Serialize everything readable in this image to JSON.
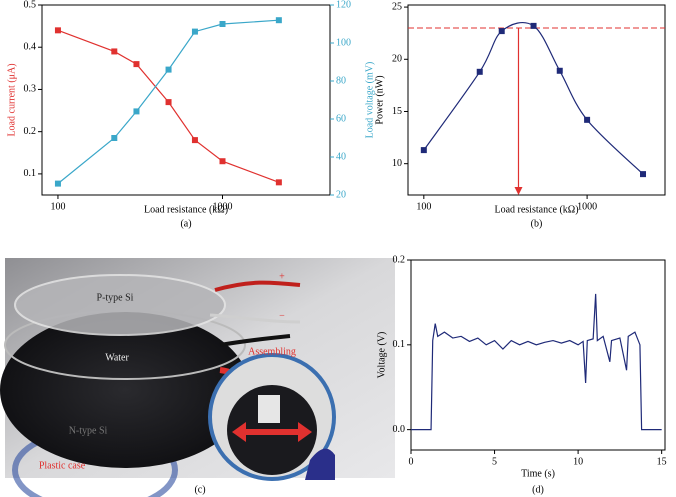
{
  "chart_data": [
    {
      "type": "line",
      "panel_label": "(a)",
      "xscale": "log",
      "markers": true,
      "x": [
        100,
        220,
        300,
        470,
        680,
        1000,
        2200
      ],
      "xlim": [
        80,
        4500
      ],
      "xticks": [
        100,
        1000
      ],
      "ylim": [
        0.05,
        0.5
      ],
      "yticks": [
        0.1,
        0.2,
        0.3,
        0.4,
        0.5
      ],
      "y2lim": [
        20,
        120
      ],
      "y2ticks": [
        20,
        40,
        60,
        80,
        100,
        120
      ],
      "xlabel": "Load resistance (kΩ)",
      "ylabel": "Load current (μA)",
      "y2label": "Load voltage (mV)",
      "series": [
        {
          "color": "#e0312f",
          "values": [
            0.44,
            0.39,
            0.36,
            0.27,
            0.18,
            0.13,
            0.08
          ]
        },
        {
          "color": "#3aa7c9",
          "axis": "y2",
          "values": [
            26,
            50,
            64,
            86,
            106,
            110,
            112
          ]
        }
      ]
    },
    {
      "type": "line",
      "panel_label": "(b)",
      "xscale": "log",
      "markers": true,
      "smooth": true,
      "x": [
        100,
        220,
        300,
        470,
        680,
        1000,
        2200
      ],
      "xlim": [
        80,
        3000
      ],
      "xticks": [
        100,
        1000
      ],
      "ylim": [
        7,
        25.2
      ],
      "yticks": [
        10,
        15,
        20,
        25
      ],
      "xlabel": "Load resistance (kΩ)",
      "ylabel": "Power (nW)",
      "hline": 23,
      "arrow_x": 380,
      "annotation_color": "#e0312f",
      "series": [
        {
          "color": "#1f2a78",
          "values": [
            11.3,
            18.8,
            22.7,
            23.2,
            18.9,
            14.2,
            9.0
          ]
        }
      ]
    },
    {
      "type": "line",
      "panel_label": "(d)",
      "markers": false,
      "x": [
        0,
        1.2,
        1.3,
        1.45,
        1.6,
        2,
        2.5,
        3,
        3.5,
        4,
        4.5,
        5,
        5.5,
        6,
        6.5,
        7,
        7.5,
        8,
        8.5,
        9,
        9.5,
        10,
        10.3,
        10.45,
        10.55,
        10.9,
        11.05,
        11.15,
        11.5,
        11.9,
        12,
        12.5,
        12.9,
        13,
        13.4,
        13.7,
        13.8,
        15
      ],
      "xlim": [
        0,
        15.2
      ],
      "xticks": [
        0,
        5,
        10,
        15
      ],
      "ylim": [
        -0.024,
        0.2
      ],
      "yticks": [
        {
          "value": 0,
          "label": "0.0"
        },
        0.1,
        0.2
      ],
      "xlabel": "Time (s)",
      "ylabel": "Voltage (V)",
      "series": [
        {
          "color": "#1f2a78",
          "values": [
            0,
            0,
            0.105,
            0.125,
            0.11,
            0.115,
            0.108,
            0.11,
            0.104,
            0.108,
            0.1,
            0.105,
            0.095,
            0.105,
            0.1,
            0.104,
            0.1,
            0.103,
            0.105,
            0.102,
            0.105,
            0.1,
            0.104,
            0.055,
            0.105,
            0.107,
            0.16,
            0.105,
            0.11,
            0.08,
            0.105,
            0.108,
            0.07,
            0.11,
            0.115,
            0.1,
            0,
            0
          ]
        }
      ]
    }
  ],
  "photo": {
    "caption": "(c)",
    "labels": {
      "p_type": "P-type Si",
      "plus": "+",
      "minus": "−",
      "water": "Water",
      "assembling": "Assembling",
      "n_type": "N-type Si",
      "case": "Plastic case"
    }
  }
}
